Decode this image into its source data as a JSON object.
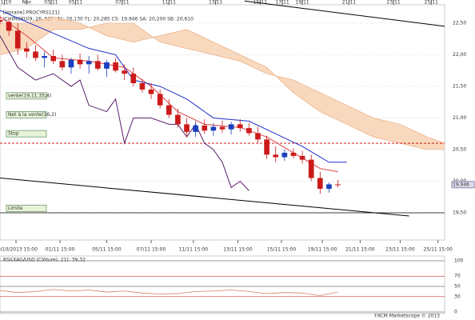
{
  "chart_data": {
    "type": "candlestick",
    "header": "[Horaire] PROCYRS121]",
    "legend": "ICHIMOKU(9, 26, 52) - SL: 20,130  TL: 20,285  CS: 19,946  SA: 20,200  SB: 20,610",
    "xlim": [
      0,
      100
    ],
    "ylim": [
      19.07,
      22.79
    ],
    "yticks": [
      {
        "value": 22.5,
        "label": "22,50"
      },
      {
        "value": 22,
        "label": "22,00"
      },
      {
        "value": 21.5,
        "label": "21,50"
      },
      {
        "value": 21,
        "label": "21,00"
      },
      {
        "value": 20.5,
        "label": "20,50"
      },
      {
        "value": 20,
        "label": "20,00"
      },
      {
        "value": 19.5,
        "label": "19,50"
      }
    ],
    "top_xticks": [
      {
        "value": 1,
        "label": "31/10"
      },
      {
        "value": 6,
        "label": "Nov"
      },
      {
        "value": 11.5,
        "label": "03/11"
      },
      {
        "value": 17,
        "label": "05/11"
      },
      {
        "value": 27.5,
        "label": "07/11"
      },
      {
        "value": 38,
        "label": "11/11"
      },
      {
        "value": 48.5,
        "label": "13/11"
      },
      {
        "value": 58.5,
        "label": "15/11"
      },
      {
        "value": 63.5,
        "label": "17/11"
      },
      {
        "value": 68,
        "label": "19/11"
      },
      {
        "value": 78.5,
        "label": "21/11"
      },
      {
        "value": 88.5,
        "label": "23/11"
      },
      {
        "value": 97,
        "label": "25/11"
      }
    ],
    "xticks": [
      {
        "value": 3.6,
        "label": "29/10/2013 15:00"
      },
      {
        "value": 13.5,
        "label": "01/11 15:00"
      },
      {
        "value": 24,
        "label": "05/11 15:00"
      },
      {
        "value": 34,
        "label": "07/11 15:00"
      },
      {
        "value": 43.5,
        "label": "11/11 15:00"
      },
      {
        "value": 53.5,
        "label": "13/11 15:00"
      },
      {
        "value": 63.3,
        "label": "15/11 15:00"
      },
      {
        "value": 72.5,
        "label": "19/11 15:00"
      },
      {
        "value": 81,
        "label": "21/11 15:00"
      },
      {
        "value": 90,
        "label": "23/11 15:00"
      },
      {
        "value": 98.5,
        "label": "25/11 15:00"
      }
    ],
    "candles": [
      {
        "x": 0,
        "open": 22.55,
        "high": 22.62,
        "low": 22.48,
        "close": 22.52
      },
      {
        "x": 2,
        "open": 22.52,
        "high": 22.58,
        "low": 22.3,
        "close": 22.38
      },
      {
        "x": 4,
        "open": 22.38,
        "high": 22.5,
        "low": 22.0,
        "close": 22.1
      },
      {
        "x": 6,
        "open": 22.1,
        "high": 22.2,
        "low": 21.95,
        "close": 22.05
      },
      {
        "x": 8,
        "open": 22.05,
        "high": 22.15,
        "low": 21.9,
        "close": 21.95
      },
      {
        "x": 10,
        "open": 21.95,
        "high": 22.05,
        "low": 21.8,
        "close": 21.98
      },
      {
        "x": 12,
        "open": 21.98,
        "high": 22.08,
        "low": 21.85,
        "close": 21.9
      },
      {
        "x": 14,
        "open": 21.9,
        "high": 22.0,
        "low": 21.75,
        "close": 21.8
      },
      {
        "x": 16,
        "open": 21.8,
        "high": 21.95,
        "low": 21.7,
        "close": 21.92
      },
      {
        "x": 18,
        "open": 21.92,
        "high": 22.02,
        "low": 21.78,
        "close": 21.85
      },
      {
        "x": 20,
        "open": 21.85,
        "high": 21.98,
        "low": 21.7,
        "close": 21.9
      },
      {
        "x": 22,
        "open": 21.9,
        "high": 22.0,
        "low": 21.75,
        "close": 21.78
      },
      {
        "x": 24,
        "open": 21.78,
        "high": 21.92,
        "low": 21.65,
        "close": 21.88
      },
      {
        "x": 26,
        "open": 21.88,
        "high": 21.95,
        "low": 21.72,
        "close": 21.75
      },
      {
        "x": 28,
        "open": 21.75,
        "high": 21.85,
        "low": 21.6,
        "close": 21.7
      },
      {
        "x": 30,
        "open": 21.7,
        "high": 21.8,
        "low": 21.5,
        "close": 21.55
      },
      {
        "x": 32,
        "open": 21.55,
        "high": 21.62,
        "low": 21.4,
        "close": 21.45
      },
      {
        "x": 34,
        "open": 21.45,
        "high": 21.55,
        "low": 21.3,
        "close": 21.38
      },
      {
        "x": 36,
        "open": 21.38,
        "high": 21.45,
        "low": 21.15,
        "close": 21.2
      },
      {
        "x": 38,
        "open": 21.2,
        "high": 21.3,
        "low": 21.0,
        "close": 21.05
      },
      {
        "x": 40,
        "open": 21.05,
        "high": 21.15,
        "low": 20.85,
        "close": 20.9
      },
      {
        "x": 42,
        "open": 20.9,
        "high": 21.0,
        "low": 20.7,
        "close": 20.78
      },
      {
        "x": 44,
        "open": 20.78,
        "high": 20.95,
        "low": 20.7,
        "close": 20.88
      },
      {
        "x": 46,
        "open": 20.88,
        "high": 20.98,
        "low": 20.75,
        "close": 20.8
      },
      {
        "x": 48,
        "open": 20.8,
        "high": 20.92,
        "low": 20.72,
        "close": 20.86
      },
      {
        "x": 50,
        "open": 20.86,
        "high": 20.96,
        "low": 20.76,
        "close": 20.82
      },
      {
        "x": 52,
        "open": 20.82,
        "high": 20.94,
        "low": 20.74,
        "close": 20.9
      },
      {
        "x": 54,
        "open": 20.9,
        "high": 20.98,
        "low": 20.78,
        "close": 20.84
      },
      {
        "x": 56,
        "open": 20.84,
        "high": 20.92,
        "low": 20.72,
        "close": 20.76
      },
      {
        "x": 58,
        "open": 20.76,
        "high": 20.86,
        "low": 20.6,
        "close": 20.66
      },
      {
        "x": 60,
        "open": 20.66,
        "high": 20.72,
        "low": 20.35,
        "close": 20.42
      },
      {
        "x": 62,
        "open": 20.42,
        "high": 20.55,
        "low": 20.3,
        "close": 20.38
      },
      {
        "x": 64,
        "open": 20.38,
        "high": 20.5,
        "low": 20.32,
        "close": 20.45
      },
      {
        "x": 66,
        "open": 20.45,
        "high": 20.52,
        "low": 20.36,
        "close": 20.4
      },
      {
        "x": 68,
        "open": 20.4,
        "high": 20.48,
        "low": 20.28,
        "close": 20.34
      },
      {
        "x": 70,
        "open": 20.34,
        "high": 20.42,
        "low": 20.0,
        "close": 20.05
      },
      {
        "x": 72,
        "open": 20.05,
        "high": 20.15,
        "low": 19.8,
        "close": 19.88
      },
      {
        "x": 74,
        "open": 19.88,
        "high": 19.98,
        "low": 19.82,
        "close": 19.95
      },
      {
        "x": 76,
        "open": 19.95,
        "high": 20.02,
        "low": 19.9,
        "close": 19.946
      }
    ],
    "up_color": "#1a3fbf",
    "down_color": "#cc1a1a",
    "lines": [
      {
        "color": "#e04040",
        "x": [
          0,
          6,
          12,
          20,
          28,
          34,
          40,
          46,
          54,
          60,
          66,
          72,
          76
        ],
        "y": [
          22.6,
          22.3,
          21.95,
          21.9,
          21.8,
          21.5,
          21.1,
          20.9,
          20.85,
          20.7,
          20.45,
          20.2,
          20.15
        ]
      },
      {
        "color": "#1f2fc8",
        "x": [
          0,
          10,
          20,
          26,
          30,
          36,
          42,
          48,
          56,
          62,
          68,
          74,
          78
        ],
        "y": [
          22.7,
          22.4,
          22.1,
          22.0,
          21.6,
          21.5,
          21.3,
          21.0,
          20.95,
          20.75,
          20.55,
          20.3,
          20.3
        ]
      },
      {
        "color": "#5a1f6a",
        "x": [
          0,
          4,
          8,
          12,
          16,
          18,
          20,
          24,
          26,
          28,
          30,
          34,
          38,
          40,
          42,
          44,
          46,
          48,
          50,
          52,
          54,
          56
        ],
        "y": [
          22.3,
          21.8,
          21.6,
          21.7,
          21.5,
          21.6,
          21.2,
          21.1,
          21.3,
          20.6,
          21.0,
          21.0,
          20.9,
          20.9,
          20.7,
          20.9,
          20.6,
          20.5,
          20.3,
          19.9,
          20.0,
          19.85
        ]
      },
      {
        "color": "#000000",
        "x": [
          55,
          100
        ],
        "y": [
          22.85,
          22.45
        ]
      },
      {
        "color": "#000000",
        "x": [
          0,
          92
        ],
        "y": [
          20.05,
          19.45
        ]
      }
    ],
    "cloud": {
      "color": "#f6c9a3",
      "x": [
        0,
        6,
        12,
        18,
        24,
        30,
        36,
        42,
        48,
        54,
        60,
        66,
        72,
        78,
        84,
        90,
        96,
        100
      ],
      "span_a": [
        22.0,
        22.1,
        22.4,
        22.4,
        22.5,
        22.5,
        22.2,
        22.1,
        22.0,
        21.9,
        21.7,
        21.6,
        21.4,
        21.2,
        21.0,
        20.9,
        20.7,
        20.6
      ],
      "span_b": [
        22.5,
        22.5,
        22.6,
        22.5,
        22.3,
        22.2,
        22.3,
        22.4,
        22.2,
        22.0,
        21.8,
        21.4,
        21.1,
        20.9,
        20.7,
        20.6,
        20.5,
        20.5
      ]
    },
    "annotations": [
      {
        "text": "vente(19,11,35,8)",
        "y": 21.35
      },
      {
        "text": "Net à la vente(16,2)",
        "y": 21.05
      },
      {
        "text": "Stop",
        "y": 20.75
      },
      {
        "text": "Limite",
        "y": 19.57
      }
    ],
    "stop_level": 20.6,
    "limit_level": 19.5,
    "last_price": {
      "value": 19.946,
      "label": "19,946"
    },
    "rsi": {
      "title": "RSI(XAG/USD (Clôture), 21): 39,32",
      "ylim": [
        0,
        100
      ],
      "yticks": [
        0,
        30,
        50,
        70,
        100
      ],
      "color": "#d08060",
      "x": [
        0,
        4,
        8,
        12,
        16,
        20,
        24,
        28,
        32,
        36,
        40,
        44,
        48,
        52,
        56,
        60,
        64,
        68,
        72,
        76
      ],
      "values": [
        42,
        38,
        40,
        44,
        41,
        43,
        39,
        41,
        37,
        35,
        36,
        40,
        41,
        43,
        40,
        36,
        38,
        37,
        32,
        39
      ]
    },
    "footer": "FXCM Marketscope © 2013"
  }
}
